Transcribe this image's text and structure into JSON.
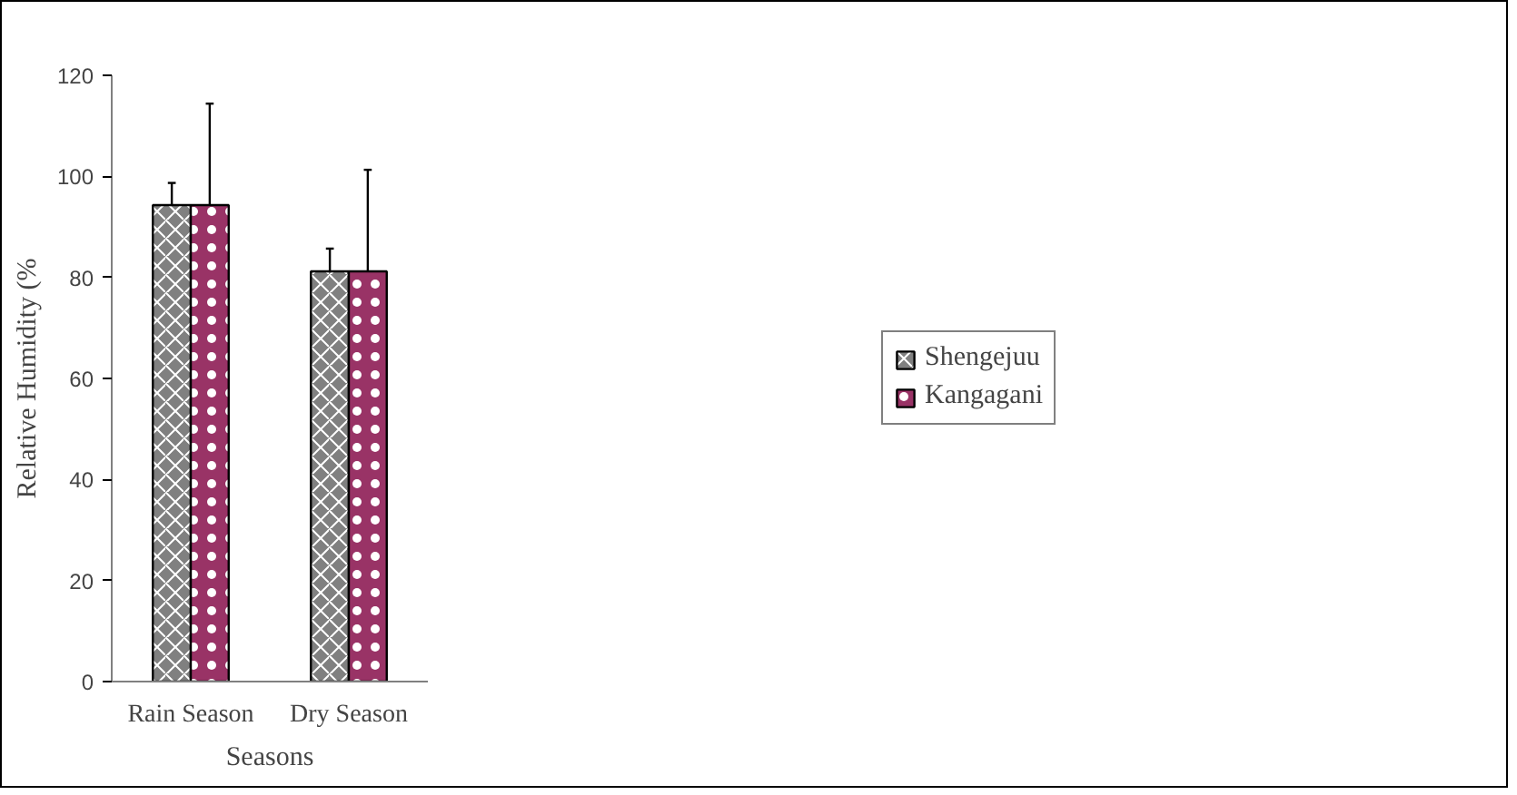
{
  "chart_data": {
    "type": "bar",
    "xlabel": "Seasons",
    "ylabel": "Relative Humidity (%",
    "categories": [
      "Rain Season",
      "Dry Season"
    ],
    "series": [
      {
        "name": "Shengejuu",
        "color": "#808080",
        "values": [
          94.3,
          81.2
        ],
        "errors": [
          [
            94.3,
            98.7
          ],
          [
            81.2,
            85.7
          ]
        ]
      },
      {
        "name": "Kangagani",
        "color": "#993366",
        "values": [
          94.3,
          81.2
        ],
        "errors": [
          [
            94.3,
            114.4
          ],
          [
            81.2,
            101.3
          ]
        ]
      }
    ],
    "ylim": [
      0,
      120
    ],
    "yticks": [
      0,
      20,
      40,
      60,
      80,
      100,
      120
    ],
    "grid": false,
    "legend": "right"
  }
}
